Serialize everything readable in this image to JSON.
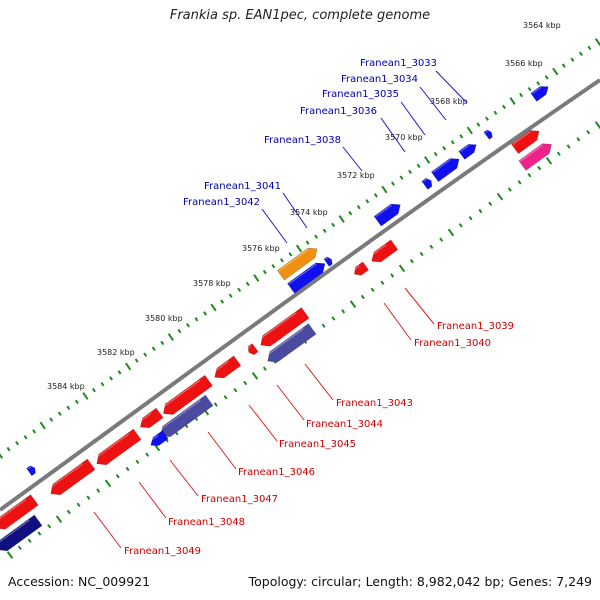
{
  "title": "Frankia sp. EAN1pec, complete genome",
  "footer": {
    "accession": "Accession: NC_009921",
    "summary": "Topology: circular; Length: 8,982,042 bp; Genes: 7,249"
  },
  "colors": {
    "backbone": "#7a7a7a",
    "dots": "#1f8a1f",
    "forward_label": "#0000aa",
    "reverse_label": "#cc0000",
    "forward_line": "#1a1acc",
    "reverse_line": "#e02020"
  },
  "ticks": [
    {
      "label": "3564 kbp"
    },
    {
      "label": "3566 kbp"
    },
    {
      "label": "3568 kbp"
    },
    {
      "label": "3570 kbp"
    },
    {
      "label": "3572 kbp"
    },
    {
      "label": "3574 kbp"
    },
    {
      "label": "3576 kbp"
    },
    {
      "label": "3578 kbp"
    },
    {
      "label": "3580 kbp"
    },
    {
      "label": "3582 kbp"
    },
    {
      "label": "3584 kbp"
    }
  ],
  "forward_labels": [
    {
      "text": "Franean1_3033"
    },
    {
      "text": "Franean1_3034"
    },
    {
      "text": "Franean1_3035"
    },
    {
      "text": "Franean1_3036"
    },
    {
      "text": "Franean1_3038"
    },
    {
      "text": "Franean1_3041"
    },
    {
      "text": "Franean1_3042"
    }
  ],
  "reverse_labels": [
    {
      "text": "Franean1_3039"
    },
    {
      "text": "Franean1_3040"
    },
    {
      "text": "Franean1_3043"
    },
    {
      "text": "Franean1_3044"
    },
    {
      "text": "Franean1_3045"
    },
    {
      "text": "Franean1_3046"
    },
    {
      "text": "Franean1_3047"
    },
    {
      "text": "Franean1_3048"
    },
    {
      "text": "Franean1_3049"
    }
  ],
  "gene_colors": {
    "blue": "#1010ee",
    "red": "#ee1111",
    "orange": "#f09010",
    "pink": "#ee2288",
    "slate": "#4a4aa0",
    "navy": "#101080"
  }
}
